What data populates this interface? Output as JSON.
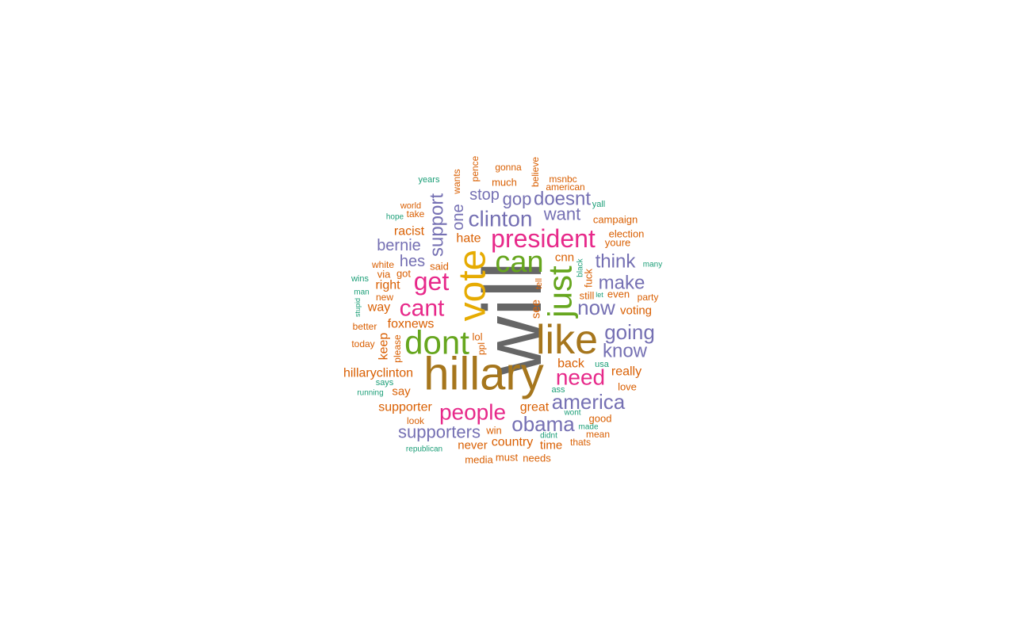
{
  "colors": {
    "gray": "#666666",
    "gold": "#A6761D",
    "amber": "#E6AB02",
    "green": "#66A61E",
    "magenta": "#E7298A",
    "purple": "#7570B3",
    "orange": "#D95F02",
    "teal": "#1B9E77"
  },
  "words": [
    {
      "text": "will",
      "color": "gray"
    },
    {
      "text": "hillary",
      "color": "gold"
    },
    {
      "text": "vote",
      "color": "amber"
    },
    {
      "text": "like",
      "color": "gold"
    },
    {
      "text": "dont",
      "color": "green"
    },
    {
      "text": "just",
      "color": "green"
    },
    {
      "text": "can",
      "color": "green"
    },
    {
      "text": "president",
      "color": "magenta"
    },
    {
      "text": "get",
      "color": "magenta"
    },
    {
      "text": "cant",
      "color": "magenta"
    },
    {
      "text": "people",
      "color": "magenta"
    },
    {
      "text": "need",
      "color": "magenta"
    },
    {
      "text": "obama",
      "color": "purple"
    },
    {
      "text": "america",
      "color": "purple"
    },
    {
      "text": "clinton",
      "color": "purple"
    },
    {
      "text": "going",
      "color": "purple"
    },
    {
      "text": "supporters",
      "color": "purple"
    },
    {
      "text": "support",
      "color": "purple"
    },
    {
      "text": "doesnt",
      "color": "purple"
    },
    {
      "text": "know",
      "color": "purple"
    },
    {
      "text": "make",
      "color": "purple"
    },
    {
      "text": "now",
      "color": "purple"
    },
    {
      "text": "think",
      "color": "purple"
    },
    {
      "text": "want",
      "color": "purple"
    },
    {
      "text": "gop",
      "color": "purple"
    },
    {
      "text": "stop",
      "color": "purple"
    },
    {
      "text": "bernie",
      "color": "purple"
    },
    {
      "text": "hes",
      "color": "purple"
    },
    {
      "text": "one",
      "color": "purple"
    },
    {
      "text": "hillaryclinton",
      "color": "orange"
    },
    {
      "text": "foxnews",
      "color": "orange"
    },
    {
      "text": "supporter",
      "color": "orange"
    },
    {
      "text": "racist",
      "color": "orange"
    },
    {
      "text": "hate",
      "color": "orange"
    },
    {
      "text": "great",
      "color": "orange"
    },
    {
      "text": "country",
      "color": "orange"
    },
    {
      "text": "back",
      "color": "orange"
    },
    {
      "text": "really",
      "color": "orange"
    },
    {
      "text": "voting",
      "color": "orange"
    },
    {
      "text": "right",
      "color": "orange"
    },
    {
      "text": "way",
      "color": "orange"
    },
    {
      "text": "keep",
      "color": "orange"
    },
    {
      "text": "say",
      "color": "orange"
    },
    {
      "text": "never",
      "color": "orange"
    },
    {
      "text": "time",
      "color": "orange"
    },
    {
      "text": "cnn",
      "color": "orange"
    },
    {
      "text": "campaign",
      "color": "orange"
    },
    {
      "text": "election",
      "color": "orange"
    },
    {
      "text": "youre",
      "color": "orange"
    },
    {
      "text": "even",
      "color": "orange"
    },
    {
      "text": "still",
      "color": "orange"
    },
    {
      "text": "fuck",
      "color": "orange"
    },
    {
      "text": "see",
      "color": "orange"
    },
    {
      "text": "lol",
      "color": "orange"
    },
    {
      "text": "good",
      "color": "orange"
    },
    {
      "text": "win",
      "color": "orange"
    },
    {
      "text": "media",
      "color": "orange"
    },
    {
      "text": "must",
      "color": "orange"
    },
    {
      "text": "needs",
      "color": "orange"
    },
    {
      "text": "love",
      "color": "orange"
    },
    {
      "text": "party",
      "color": "orange"
    },
    {
      "text": "much",
      "color": "orange"
    },
    {
      "text": "american",
      "color": "orange"
    },
    {
      "text": "msnbc",
      "color": "orange"
    },
    {
      "text": "gonna",
      "color": "orange"
    },
    {
      "text": "pence",
      "color": "orange"
    },
    {
      "text": "believe",
      "color": "orange"
    },
    {
      "text": "wants",
      "color": "orange"
    },
    {
      "text": "said",
      "color": "orange"
    },
    {
      "text": "via",
      "color": "orange"
    },
    {
      "text": "got",
      "color": "orange"
    },
    {
      "text": "white",
      "color": "orange"
    },
    {
      "text": "new",
      "color": "orange"
    },
    {
      "text": "better",
      "color": "orange"
    },
    {
      "text": "today",
      "color": "orange"
    },
    {
      "text": "please",
      "color": "orange"
    },
    {
      "text": "ppl",
      "color": "orange"
    },
    {
      "text": "tell",
      "color": "orange"
    },
    {
      "text": "mean",
      "color": "orange"
    },
    {
      "text": "thats",
      "color": "orange"
    },
    {
      "text": "look",
      "color": "orange"
    },
    {
      "text": "world",
      "color": "orange"
    },
    {
      "text": "take",
      "color": "orange"
    },
    {
      "text": "years",
      "color": "teal"
    },
    {
      "text": "hope",
      "color": "teal"
    },
    {
      "text": "yall",
      "color": "teal"
    },
    {
      "text": "many",
      "color": "teal"
    },
    {
      "text": "black",
      "color": "teal"
    },
    {
      "text": "let",
      "color": "teal"
    },
    {
      "text": "usa",
      "color": "teal"
    },
    {
      "text": "ass",
      "color": "teal"
    },
    {
      "text": "wont",
      "color": "teal"
    },
    {
      "text": "made",
      "color": "teal"
    },
    {
      "text": "didnt",
      "color": "teal"
    },
    {
      "text": "wins",
      "color": "teal"
    },
    {
      "text": "man",
      "color": "teal"
    },
    {
      "text": "stupid",
      "color": "teal"
    },
    {
      "text": "says",
      "color": "teal"
    },
    {
      "text": "running",
      "color": "teal"
    },
    {
      "text": "republican",
      "color": "teal"
    }
  ]
}
